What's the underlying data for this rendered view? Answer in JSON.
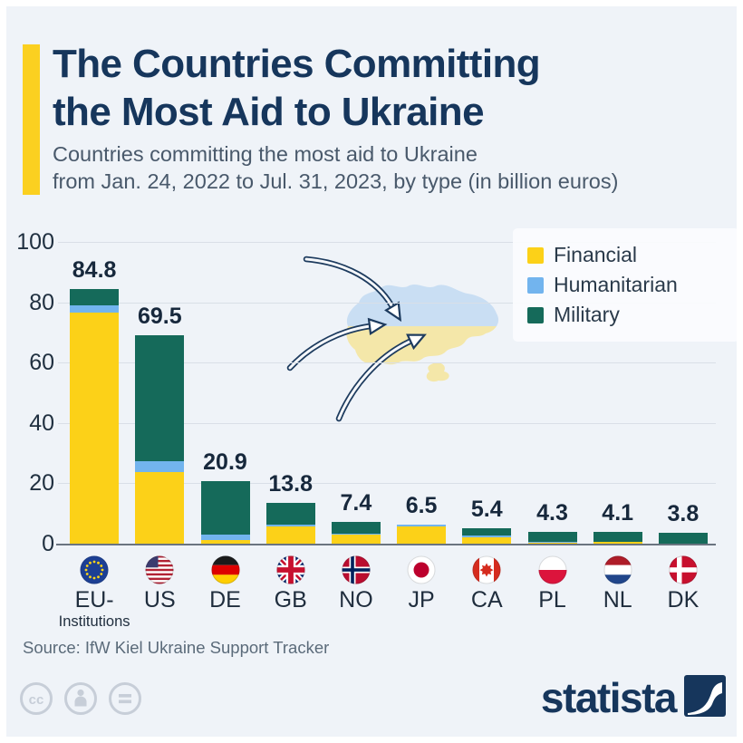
{
  "header": {
    "title_line1": "The Countries Committing",
    "title_line2": "the Most Aid to Ukraine",
    "subtitle_line1": "Countries committing the most aid to Ukraine",
    "subtitle_line2": "from Jan. 24, 2022 to Jul. 31, 2023, by type (in billion euros)"
  },
  "chart_data": {
    "type": "bar",
    "stacked": true,
    "title": "Countries committing the most aid to Ukraine from Jan. 24, 2022 to Jul. 31, 2023, by type (in billion euros)",
    "unit": "billion euros",
    "ylim": [
      0,
      100
    ],
    "yticks": [
      0,
      20,
      40,
      60,
      80,
      100
    ],
    "grid": true,
    "legend_position": "top-right",
    "categories": [
      "EU-Institutions",
      "US",
      "DE",
      "GB",
      "NO",
      "JP",
      "CA",
      "PL",
      "NL",
      "DK"
    ],
    "category_display": [
      {
        "label": "EU-",
        "sublabel": "Institutions"
      },
      {
        "label": "US"
      },
      {
        "label": "DE"
      },
      {
        "label": "GB"
      },
      {
        "label": "NO"
      },
      {
        "label": "JP"
      },
      {
        "label": "CA"
      },
      {
        "label": "PL"
      },
      {
        "label": "NL"
      },
      {
        "label": "DK"
      }
    ],
    "flags": [
      "flag-eu",
      "flag-us",
      "flag-de",
      "flag-gb",
      "flag-no",
      "flag-jp",
      "flag-ca",
      "flag-pl",
      "flag-nl",
      "flag-dk"
    ],
    "series": [
      {
        "name": "Financial",
        "color": "#fcd118",
        "values": [
          77.0,
          23.9,
          1.4,
          6.0,
          3.4,
          5.9,
          2.5,
          0.7,
          0.8,
          0.2
        ]
      },
      {
        "name": "Humanitarian",
        "color": "#72b4ee",
        "values": [
          2.2,
          3.7,
          2.0,
          0.5,
          0.3,
          0.6,
          0.4,
          0.1,
          0.2,
          0.0
        ]
      },
      {
        "name": "Military",
        "color": "#156a5a",
        "values": [
          5.6,
          41.9,
          17.5,
          7.3,
          3.7,
          0.0,
          2.5,
          3.5,
          3.1,
          3.6
        ]
      }
    ],
    "totals": [
      84.8,
      69.5,
      20.9,
      13.8,
      7.4,
      6.5,
      5.4,
      4.3,
      4.1,
      3.8
    ]
  },
  "decoration": {
    "map": "ukraine-map",
    "map_colors": {
      "top": "#c9def3",
      "bottom": "#f4e7a9"
    },
    "arrow_count": 3,
    "arrow_color": "#1d3b5e"
  },
  "colors": {
    "background": "#eff3f8",
    "frame": "#ffffff",
    "accent_bar": "#fbd020",
    "title": "#16365c",
    "grid": "#d9dfe7",
    "baseline": "#6a7480"
  },
  "footer": {
    "source": "Source: IfW Kiel Ukraine Support Tracker",
    "brand": "statista",
    "license_icons": [
      "cc-icon",
      "cc-person-icon",
      "cc-equals-icon"
    ]
  }
}
